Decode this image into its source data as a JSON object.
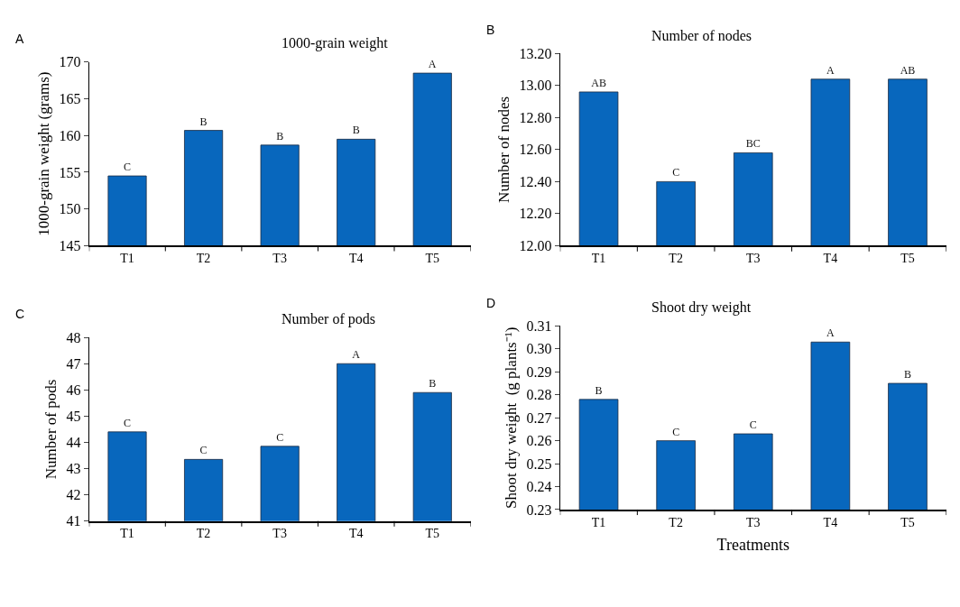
{
  "chart_data": [
    {
      "type": "bar",
      "title": "1000-grain weight",
      "ylabel": "1000-grain weight (grams)",
      "annotations": [
        "A"
      ],
      "categories": [
        "T1",
        "T2",
        "T3",
        "T4",
        "T5"
      ],
      "values": [
        154.5,
        160.7,
        158.7,
        159.5,
        168.5
      ],
      "value_labels": [
        "C",
        "B",
        "B",
        "B",
        "A"
      ],
      "color": "#0867bd",
      "ylim": [
        145,
        170
      ],
      "yticks": [
        145,
        150,
        155,
        160,
        165,
        170
      ]
    },
    {
      "type": "bar",
      "title": "Number of nodes",
      "ylabel": "Number of nodes",
      "annotations": [
        "B"
      ],
      "categories": [
        "T1",
        "T2",
        "T3",
        "T4",
        "T5"
      ],
      "values": [
        12.96,
        12.4,
        12.58,
        13.04,
        13.04
      ],
      "value_labels": [
        "AB",
        "C",
        "BC",
        "A",
        "AB"
      ],
      "color": "#0867bd",
      "ylim": [
        12.0,
        13.2
      ],
      "yticks": [
        {
          "value": 12.0,
          "label": "12.00"
        },
        {
          "value": 12.2,
          "label": "12.20"
        },
        {
          "value": 12.4,
          "label": "12.40"
        },
        {
          "value": 12.6,
          "label": "12.60"
        },
        {
          "value": 12.8,
          "label": "12.80"
        },
        {
          "value": 13.0,
          "label": "13.00"
        },
        {
          "value": 13.2,
          "label": "13.20"
        }
      ]
    },
    {
      "type": "bar",
      "title": "Number of pods",
      "ylabel": "Number of pods",
      "annotations": [
        "C"
      ],
      "categories": [
        "T1",
        "T2",
        "T3",
        "T4",
        "T5"
      ],
      "values": [
        44.4,
        43.35,
        43.85,
        47.0,
        45.9
      ],
      "value_labels": [
        "C",
        "C",
        "C",
        "A",
        "B"
      ],
      "color": "#0867bd",
      "ylim": [
        41,
        48
      ],
      "yticks": [
        41,
        42,
        43,
        44,
        45,
        46,
        47,
        48
      ]
    },
    {
      "type": "bar",
      "title": "Shoot dry weight",
      "ylabel": "Shoot dry weight  (g plants⁻¹)",
      "xlabel": "Treatments",
      "annotations": [
        "D"
      ],
      "categories": [
        "T1",
        "T2",
        "T3",
        "T4",
        "T5"
      ],
      "values": [
        0.278,
        0.26,
        0.263,
        0.303,
        0.285
      ],
      "value_labels": [
        "B",
        "C",
        "C",
        "A",
        "B"
      ],
      "color": "#0867bd",
      "ylim": [
        0.23,
        0.31
      ],
      "yticks": [
        0.23,
        0.24,
        0.25,
        0.26,
        0.27,
        0.28,
        0.29,
        {
          "value": 0.3,
          "label": "0.30"
        },
        0.31
      ]
    }
  ]
}
